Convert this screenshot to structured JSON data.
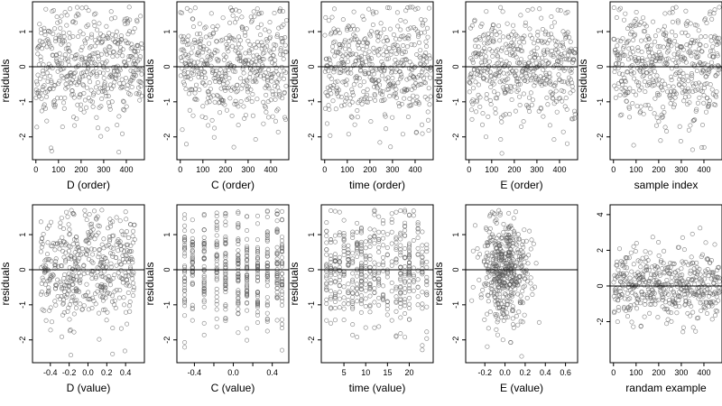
{
  "figure": {
    "type": "residual-panel-grid",
    "rows": 2,
    "cols": 5,
    "point_style": "open circles, dark gray, semi-transparent",
    "point_color": "#5a5a5a",
    "axis_color": "#000000",
    "reference_line": 0
  },
  "chart_data": [
    {
      "id": "p1",
      "type": "scatter",
      "xlabel": "D (order)",
      "ylabel": "residuals",
      "xlim": [
        -15,
        480
      ],
      "ylim": [
        -2.65,
        1.85
      ],
      "xticks": [
        0,
        100,
        200,
        300,
        400
      ],
      "xtick_labels": [
        "0",
        "100",
        "200",
        "300",
        "400"
      ],
      "yticks": [
        -2,
        -1,
        0,
        1
      ],
      "ytick_labels": [
        "-2",
        "-1",
        "0",
        "1"
      ],
      "hline": 0,
      "n_points": 470,
      "x_kind": "index",
      "y_sd": 0.78,
      "seed": 11,
      "grid": false
    },
    {
      "id": "p2",
      "type": "scatter",
      "xlabel": "C (order)",
      "ylabel": "residuals",
      "xlim": [
        -15,
        480
      ],
      "ylim": [
        -2.65,
        1.85
      ],
      "xticks": [
        0,
        100,
        200,
        300,
        400
      ],
      "xtick_labels": [
        "0",
        "100",
        "200",
        "300",
        "400"
      ],
      "yticks": [
        -2,
        -1,
        0,
        1
      ],
      "ytick_labels": [
        "-2",
        "-1",
        "0",
        "1"
      ],
      "hline": 0,
      "n_points": 470,
      "x_kind": "index",
      "y_sd": 0.78,
      "seed": 23,
      "grid": false
    },
    {
      "id": "p3",
      "type": "scatter",
      "xlabel": "time (order)",
      "ylabel": "residuals",
      "xlim": [
        -15,
        480
      ],
      "ylim": [
        -2.65,
        1.85
      ],
      "xticks": [
        0,
        100,
        200,
        300,
        400
      ],
      "xtick_labels": [
        "0",
        "100",
        "200",
        "300",
        "400"
      ],
      "yticks": [
        -2,
        -1,
        0,
        1
      ],
      "ytick_labels": [
        "-2",
        "-1",
        "0",
        "1"
      ],
      "hline": 0,
      "n_points": 470,
      "x_kind": "index",
      "y_sd": 0.78,
      "seed": 37,
      "grid": false
    },
    {
      "id": "p4",
      "type": "scatter",
      "xlabel": "E (order)",
      "ylabel": "residuals",
      "xlim": [
        -15,
        480
      ],
      "ylim": [
        -2.65,
        1.85
      ],
      "xticks": [
        0,
        100,
        200,
        300,
        400
      ],
      "xtick_labels": [
        "0",
        "100",
        "200",
        "300",
        "400"
      ],
      "yticks": [
        -2,
        -1,
        0,
        1
      ],
      "ytick_labels": [
        "-2",
        "-1",
        "0",
        "1"
      ],
      "hline": 0,
      "n_points": 470,
      "x_kind": "index",
      "y_sd": 0.78,
      "seed": 41,
      "grid": false
    },
    {
      "id": "p5",
      "type": "scatter",
      "xlabel": "sample index",
      "ylabel": "residuals",
      "xlim": [
        -15,
        480
      ],
      "ylim": [
        -2.65,
        1.85
      ],
      "xticks": [
        0,
        100,
        200,
        300,
        400
      ],
      "xtick_labels": [
        "0",
        "100",
        "200",
        "300",
        "400"
      ],
      "yticks": [
        -2,
        -1,
        0,
        1
      ],
      "ytick_labels": [
        "-2",
        "-1",
        "0",
        "1"
      ],
      "hline": 0,
      "n_points": 470,
      "x_kind": "index",
      "y_sd": 0.78,
      "seed": 53,
      "grid": false
    },
    {
      "id": "p6",
      "type": "scatter",
      "xlabel": "D (value)",
      "ylabel": "residuals",
      "xlim": [
        -0.59,
        0.6
      ],
      "ylim": [
        -2.65,
        1.85
      ],
      "xticks": [
        -0.4,
        -0.2,
        0.0,
        0.2,
        0.4
      ],
      "xtick_labels": [
        "-0.4",
        "-0.2",
        "0.0",
        "0.2",
        "0.4"
      ],
      "yticks": [
        -2,
        -1,
        0,
        1
      ],
      "ytick_labels": [
        "-2",
        "-1",
        "0",
        "1"
      ],
      "hline": 0,
      "n_points": 470,
      "x_kind": "uniform",
      "x_range": [
        -0.5,
        0.5
      ],
      "y_sd": 0.78,
      "seed": 11,
      "grid": false
    },
    {
      "id": "p7",
      "type": "scatter",
      "xlabel": "C (value)",
      "ylabel": "residuals",
      "xlim": [
        -0.58,
        0.57
      ],
      "ylim": [
        -2.65,
        1.85
      ],
      "xticks": [
        -0.4,
        -0.2,
        0.0,
        0.2,
        0.4
      ],
      "xtick_labels": [
        "-0.4",
        "",
        "0.0",
        "",
        "0.4"
      ],
      "yticks": [
        -2,
        -1,
        0,
        1
      ],
      "ytick_labels": [
        "-2",
        "-1",
        "0",
        "1"
      ],
      "hline": 0,
      "n_points": 470,
      "x_kind": "levels",
      "x_levels": [
        -0.5,
        -0.42,
        -0.3,
        -0.17,
        -0.08,
        0.05,
        0.14,
        0.25,
        0.35,
        0.45,
        0.5
      ],
      "y_sd": 0.78,
      "seed": 23,
      "grid": false
    },
    {
      "id": "p8",
      "type": "scatter",
      "xlabel": "time (value)",
      "ylabel": "residuals",
      "xlim": [
        -0.2,
        25.5
      ],
      "ylim": [
        -2.65,
        1.85
      ],
      "xticks": [
        5,
        10,
        15,
        20
      ],
      "xtick_labels": [
        "5",
        "10",
        "15",
        "20"
      ],
      "yticks": [
        -2,
        -1,
        0,
        1
      ],
      "ytick_labels": [
        "-2",
        "-1",
        "0",
        "1"
      ],
      "hline": 0,
      "n_points": 470,
      "x_kind": "integers",
      "x_range": [
        1,
        24
      ],
      "y_sd": 0.78,
      "seed": 37,
      "grid": false
    },
    {
      "id": "p9",
      "type": "scatter",
      "xlabel": "E (value)",
      "ylabel": "residuals",
      "xlim": [
        -0.39,
        0.72
      ],
      "ylim": [
        -2.65,
        1.85
      ],
      "xticks": [
        -0.2,
        0.0,
        0.2,
        0.4,
        0.6
      ],
      "xtick_labels": [
        "-0.2",
        "0.0",
        "0.2",
        "0.4",
        "0.6"
      ],
      "yticks": [
        -2,
        -1,
        0,
        1
      ],
      "ytick_labels": [
        "-2",
        "-1",
        "0",
        "1"
      ],
      "hline": 0,
      "n_points": 470,
      "x_kind": "normal",
      "x_center": 0.0,
      "x_sd": 0.12,
      "y_sd": 0.78,
      "seed": 41,
      "grid": false
    },
    {
      "id": "p10",
      "type": "scatter",
      "xlabel": "randam example",
      "ylabel": "",
      "xlim": [
        -15,
        480
      ],
      "ylim": [
        -4.3,
        4.55
      ],
      "xticks": [
        0,
        100,
        200,
        300,
        400
      ],
      "xtick_labels": [
        "0",
        "100",
        "200",
        "300",
        "400"
      ],
      "yticks": [
        -2,
        0,
        2,
        4
      ],
      "ytick_labels": [
        "-2",
        "0",
        "2",
        "4"
      ],
      "hline": 0,
      "n_points": 470,
      "x_kind": "index",
      "y_sd": 1.0,
      "seed": 97,
      "grid": false
    }
  ]
}
